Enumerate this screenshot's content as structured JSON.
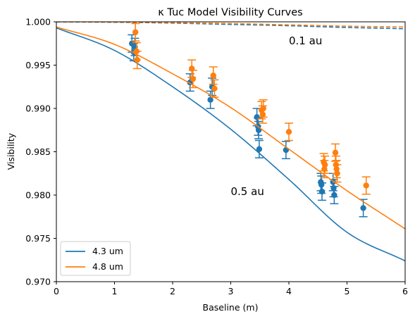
{
  "chart_data": {
    "type": "scatter",
    "title": "κ Tuc Model Visibility Curves",
    "xlabel": "Baseline (m)",
    "ylabel": "Visibility",
    "xlim": [
      0,
      6
    ],
    "ylim": [
      0.97,
      1.0
    ],
    "xticks": [
      0,
      1,
      2,
      3,
      4,
      5,
      6
    ],
    "xtick_labels": [
      "0",
      "1",
      "2",
      "3",
      "4",
      "5",
      "6"
    ],
    "yticks": [
      0.97,
      0.975,
      0.98,
      0.985,
      0.99,
      0.995,
      1.0
    ],
    "ytick_labels": [
      "0.970",
      "0.975",
      "0.980",
      "0.985",
      "0.990",
      "0.995",
      "1.000"
    ],
    "grid": false,
    "legend_position": "lower-left",
    "annotations": [
      {
        "text": "0.1 au",
        "x": 4.0,
        "y": 0.9974
      },
      {
        "text": "0.5 au",
        "x": 3.0,
        "y": 0.98
      }
    ],
    "series": [
      {
        "name": "4.3 um",
        "color": "#1f77b4",
        "model_0_5au": {
          "style": "solid",
          "x": [
            0,
            1,
            2,
            3,
            4,
            5,
            6
          ],
          "y": [
            0.9993,
            0.9967,
            0.9925,
            0.9876,
            0.9818,
            0.9757,
            0.9724
          ]
        },
        "model_0_1au": {
          "style": "dashed",
          "x": [
            0,
            1,
            2,
            3,
            4,
            5,
            6
          ],
          "y": [
            1.0,
            0.99995,
            0.99985,
            0.9997,
            0.99955,
            0.99935,
            0.9992
          ]
        },
        "points": [
          {
            "x": 1.3,
            "y": 0.9975,
            "err": 0.001
          },
          {
            "x": 1.33,
            "y": 0.9965,
            "err": 0.001
          },
          {
            "x": 1.35,
            "y": 0.9971,
            "err": 0.001
          },
          {
            "x": 2.3,
            "y": 0.993,
            "err": 0.001
          },
          {
            "x": 2.65,
            "y": 0.991,
            "err": 0.001
          },
          {
            "x": 2.68,
            "y": 0.9925,
            "err": 0.001
          },
          {
            "x": 3.45,
            "y": 0.989,
            "err": 0.001
          },
          {
            "x": 3.47,
            "y": 0.9879,
            "err": 0.001
          },
          {
            "x": 3.48,
            "y": 0.9875,
            "err": 0.001
          },
          {
            "x": 3.49,
            "y": 0.9853,
            "err": 0.001
          },
          {
            "x": 3.95,
            "y": 0.9852,
            "err": 0.001
          },
          {
            "x": 4.55,
            "y": 0.9815,
            "err": 0.001
          },
          {
            "x": 4.56,
            "y": 0.9812,
            "err": 0.001
          },
          {
            "x": 4.57,
            "y": 0.9804,
            "err": 0.001
          },
          {
            "x": 4.76,
            "y": 0.9815,
            "err": 0.001
          },
          {
            "x": 4.77,
            "y": 0.9808,
            "err": 0.001
          },
          {
            "x": 4.78,
            "y": 0.98,
            "err": 0.001
          },
          {
            "x": 5.28,
            "y": 0.9785,
            "err": 0.001
          }
        ]
      },
      {
        "name": "4.8 um",
        "color": "#ff7f0e",
        "model_0_5au": {
          "style": "solid",
          "x": [
            0,
            1,
            2,
            3,
            4,
            5,
            6
          ],
          "y": [
            0.9994,
            0.9974,
            0.994,
            0.9901,
            0.9853,
            0.9805,
            0.9761
          ]
        },
        "model_0_1au": {
          "style": "dashed",
          "x": [
            0,
            1,
            2,
            3,
            4,
            5,
            6
          ],
          "y": [
            1.0,
            0.99997,
            0.9999,
            0.9998,
            0.99965,
            0.9995,
            0.9994
          ]
        },
        "points": [
          {
            "x": 1.36,
            "y": 0.9988,
            "err": 0.001
          },
          {
            "x": 1.38,
            "y": 0.9966,
            "err": 0.001
          },
          {
            "x": 1.39,
            "y": 0.9956,
            "err": 0.001
          },
          {
            "x": 2.33,
            "y": 0.9946,
            "err": 0.001
          },
          {
            "x": 2.35,
            "y": 0.9934,
            "err": 0.001
          },
          {
            "x": 2.7,
            "y": 0.9938,
            "err": 0.001
          },
          {
            "x": 2.72,
            "y": 0.9923,
            "err": 0.001
          },
          {
            "x": 3.53,
            "y": 0.9898,
            "err": 0.001
          },
          {
            "x": 3.55,
            "y": 0.9893,
            "err": 0.001
          },
          {
            "x": 3.56,
            "y": 0.99,
            "err": 0.001
          },
          {
            "x": 4.0,
            "y": 0.9873,
            "err": 0.001
          },
          {
            "x": 4.6,
            "y": 0.9838,
            "err": 0.001
          },
          {
            "x": 4.61,
            "y": 0.983,
            "err": 0.001
          },
          {
            "x": 4.62,
            "y": 0.9835,
            "err": 0.001
          },
          {
            "x": 4.8,
            "y": 0.9849,
            "err": 0.001
          },
          {
            "x": 4.81,
            "y": 0.9835,
            "err": 0.001
          },
          {
            "x": 4.82,
            "y": 0.983,
            "err": 0.001
          },
          {
            "x": 4.83,
            "y": 0.9825,
            "err": 0.001
          },
          {
            "x": 5.33,
            "y": 0.9811,
            "err": 0.001
          }
        ]
      }
    ]
  }
}
